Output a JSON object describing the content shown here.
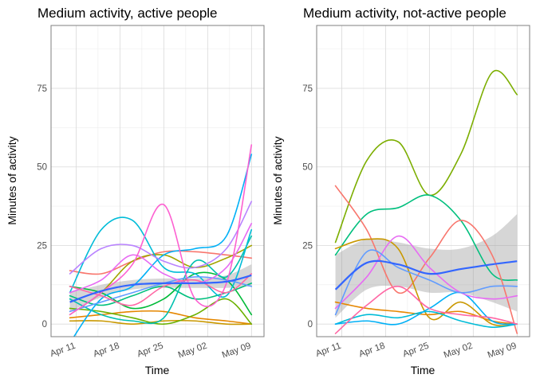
{
  "chart_data": [
    {
      "type": "line",
      "title": "Medium activity, active people",
      "xlabel": "Time",
      "ylabel": "Minutes of activity",
      "x_ticks": [
        "Apr 11",
        "Apr 18",
        "Apr 25",
        "May 02",
        "May 09"
      ],
      "y_ticks": [
        "0",
        "25",
        "50",
        "75"
      ],
      "xlim": [
        "Apr 07",
        "May 11"
      ],
      "ylim": [
        -4,
        95
      ],
      "grid": true,
      "legend": "none",
      "x": [
        "Apr 10",
        "Apr 15",
        "Apr 20",
        "Apr 25",
        "Apr 30",
        "May 05",
        "May 09"
      ],
      "series": [
        {
          "color": "#F8766D",
          "values": [
            17,
            16,
            20,
            23,
            23,
            22,
            21
          ]
        },
        {
          "color": "#E58700",
          "values": [
            2,
            3,
            4,
            4,
            2,
            1,
            0
          ]
        },
        {
          "color": "#C99800",
          "values": [
            1,
            1,
            0,
            1,
            1,
            0,
            0
          ]
        },
        {
          "color": "#A3A500",
          "values": [
            3,
            10,
            20,
            22,
            18,
            21,
            25
          ]
        },
        {
          "color": "#6BB100",
          "values": [
            5,
            4,
            2,
            0,
            3,
            8,
            0
          ]
        },
        {
          "color": "#00BA38",
          "values": [
            12,
            10,
            5,
            8,
            16,
            14,
            3
          ]
        },
        {
          "color": "#00BF7D",
          "values": [
            9,
            6,
            9,
            12,
            8,
            10,
            13
          ]
        },
        {
          "color": "#00C0AF",
          "values": [
            8,
            3,
            1,
            2,
            20,
            15,
            28
          ]
        },
        {
          "color": "#00BCD8",
          "values": [
            10,
            30,
            33,
            18,
            16,
            9,
            30
          ]
        },
        {
          "color": "#00B0F6",
          "values": [
            -6,
            8,
            12,
            22,
            24,
            28,
            54
          ]
        },
        {
          "color": "#619CFF",
          "values": [
            4,
            7,
            10,
            13,
            15,
            14,
            12
          ]
        },
        {
          "color": "#B983FF",
          "values": [
            16,
            24,
            25,
            20,
            18,
            24,
            39
          ]
        },
        {
          "color": "#E76BF3",
          "values": [
            10,
            14,
            22,
            16,
            13,
            18,
            32
          ]
        },
        {
          "color": "#FD61D1",
          "values": [
            3,
            10,
            19,
            38,
            8,
            13,
            57
          ]
        },
        {
          "color": "#FF67A4",
          "values": [
            12,
            9,
            6,
            12,
            14,
            10,
            16
          ]
        }
      ],
      "smooth": {
        "color": "#3366FF",
        "values": [
          7,
          10.5,
          12.5,
          13,
          13,
          13.5,
          15.5
        ],
        "ci_lower": [
          4,
          8.5,
          11,
          11.5,
          11.5,
          11.5,
          12
        ],
        "ci_upper": [
          10,
          12.5,
          14,
          14.5,
          14.5,
          15.5,
          19
        ]
      }
    },
    {
      "type": "line",
      "title": "Medium activity, not-active people",
      "xlabel": "Time",
      "ylabel": "Minutes of activity",
      "x_ticks": [
        "Apr 11",
        "Apr 18",
        "Apr 25",
        "May 02",
        "May 09"
      ],
      "y_ticks": [
        "0",
        "25",
        "50",
        "75"
      ],
      "xlim": [
        "Apr 07",
        "May 11"
      ],
      "ylim": [
        -4,
        95
      ],
      "grid": true,
      "legend": "none",
      "x": [
        "Apr 10",
        "Apr 15",
        "Apr 20",
        "Apr 25",
        "Apr 30",
        "May 05",
        "May 09"
      ],
      "series": [
        {
          "color": "#7CAE00",
          "values": [
            26,
            52,
            58,
            41,
            54,
            80,
            73
          ]
        },
        {
          "color": "#00BF7D",
          "values": [
            22,
            35,
            37,
            41,
            33,
            16,
            14
          ]
        },
        {
          "color": "#F8766D",
          "values": [
            44,
            30,
            10,
            21,
            33,
            22,
            -3
          ]
        },
        {
          "color": "#C99800",
          "values": [
            24,
            27,
            24,
            2,
            7,
            0,
            0
          ]
        },
        {
          "color": "#E58700",
          "values": [
            7,
            5,
            4,
            3,
            4,
            1,
            0
          ]
        },
        {
          "color": "#00BCD8",
          "values": [
            0,
            3,
            2,
            4,
            1,
            -1,
            0
          ]
        },
        {
          "color": "#00B0F6",
          "values": [
            0,
            1,
            0,
            5,
            10,
            1,
            0
          ]
        },
        {
          "color": "#E76BF3",
          "values": [
            5,
            15,
            28,
            18,
            10,
            8,
            9
          ]
        },
        {
          "color": "#619CFF",
          "values": [
            3,
            23,
            18,
            14,
            10,
            12,
            12
          ]
        },
        {
          "color": "#FF67A4",
          "values": [
            -3,
            6,
            12,
            5,
            3,
            2,
            0
          ]
        }
      ],
      "smooth": {
        "color": "#3366FF",
        "values": [
          11,
          19.5,
          19,
          16,
          17.5,
          19,
          20
        ],
        "ci_lower": [
          2,
          11,
          12,
          10,
          10,
          7,
          4
        ],
        "ci_upper": [
          22,
          27,
          26,
          24,
          24,
          28,
          35
        ]
      }
    }
  ]
}
